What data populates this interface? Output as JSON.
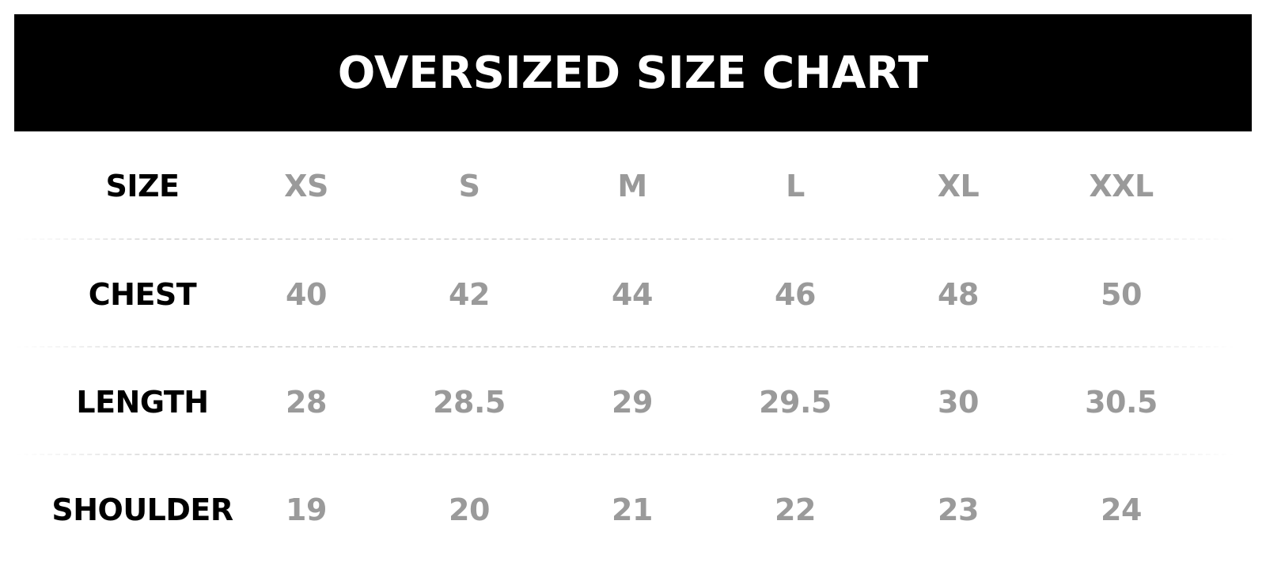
{
  "title": "OVERSIZED SIZE CHART",
  "colors": {
    "header_bg": "#000000",
    "header_text": "#ffffff",
    "label_text": "#000000",
    "value_text": "#9a9a9a",
    "divider": "#dcdcdc"
  },
  "table": {
    "rows": [
      {
        "label": "SIZE",
        "values": [
          "XS",
          "S",
          "M",
          "L",
          "XL",
          "XXL"
        ]
      },
      {
        "label": "CHEST",
        "values": [
          "40",
          "42",
          "44",
          "46",
          "48",
          "50"
        ]
      },
      {
        "label": "LENGTH",
        "values": [
          "28",
          "28.5",
          "29",
          "29.5",
          "30",
          "30.5"
        ]
      },
      {
        "label": "SHOULDER",
        "values": [
          "19",
          "20",
          "21",
          "22",
          "23",
          "24"
        ]
      }
    ]
  }
}
